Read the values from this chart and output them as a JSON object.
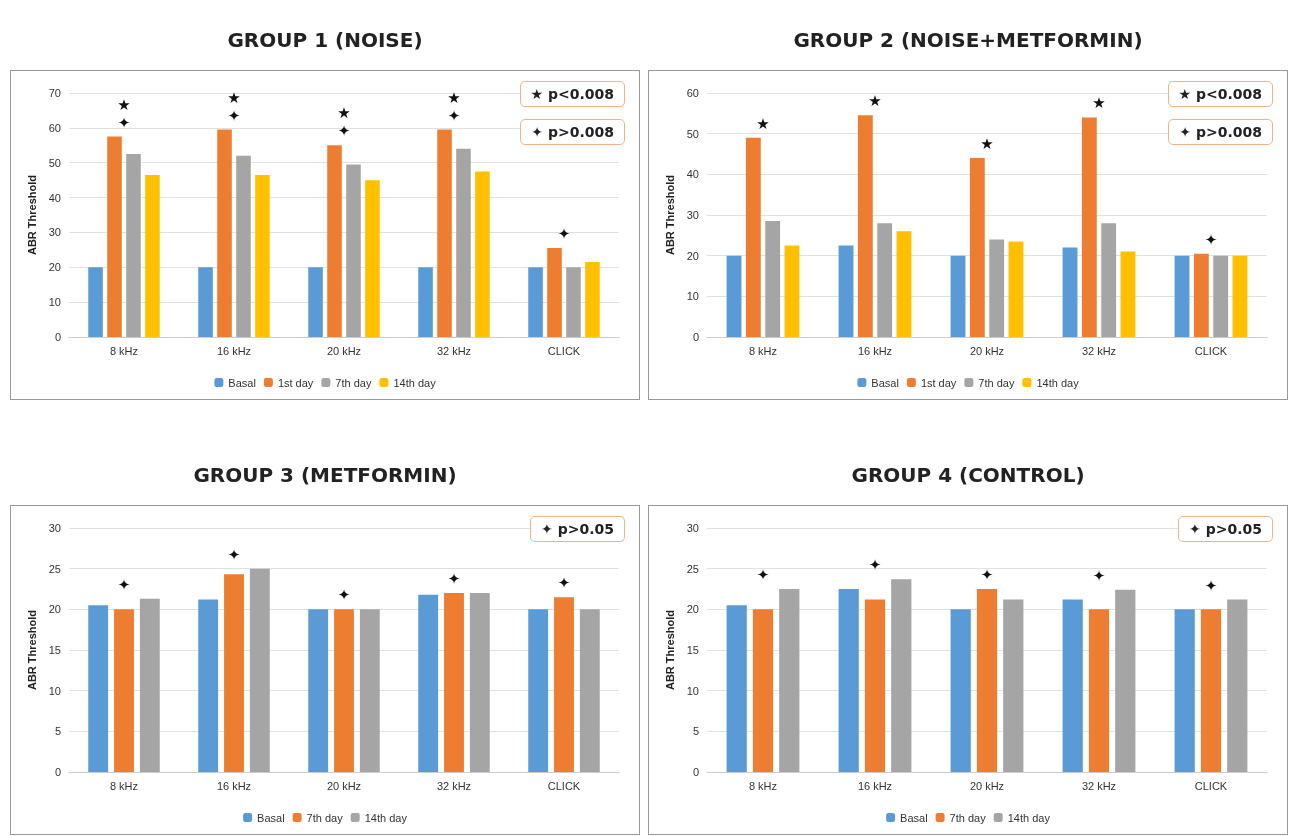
{
  "chart_data": [
    {
      "type": "bar",
      "title": "GROUP 1 (NOISE)",
      "ylabel": "ABR Threshold",
      "categories": [
        "8 kHz",
        "16 kHz",
        "20 kHz",
        "32 kHz",
        "CLICK"
      ],
      "series": [
        {
          "name": "Basal",
          "color": "#5b9bd5",
          "values": [
            20,
            20,
            20,
            20,
            20
          ]
        },
        {
          "name": "1st day",
          "color": "#ed7d31",
          "values": [
            57.5,
            59.5,
            55,
            59.5,
            25.5
          ]
        },
        {
          "name": "7th day",
          "color": "#a5a5a5",
          "values": [
            52.5,
            52,
            49.5,
            54,
            20
          ]
        },
        {
          "name": "14th day",
          "color": "#ffc000",
          "values": [
            46.5,
            46.5,
            45,
            47.5,
            21.5
          ]
        }
      ],
      "ylim": [
        0,
        70
      ],
      "yticks": [
        0,
        10,
        20,
        30,
        40,
        50,
        60,
        70
      ],
      "grid": "y",
      "legend": "bottom",
      "annotations": [
        "★ p<0.008",
        "✦ p>0.008",
        "★",
        "★",
        "★",
        "★",
        "✦",
        "✦",
        "✦",
        "✦",
        "✦"
      ]
    },
    {
      "type": "bar",
      "title": "GROUP 2 (NOISE+METFORMIN)",
      "ylabel": "ABR Threshold",
      "categories": [
        "8 kHz",
        "16 kHz",
        "20 kHz",
        "32 kHz",
        "CLICK"
      ],
      "series": [
        {
          "name": "Basal",
          "color": "#5b9bd5",
          "values": [
            20,
            22.5,
            20,
            22,
            20
          ]
        },
        {
          "name": "1st day",
          "color": "#ed7d31",
          "values": [
            49,
            54.5,
            44,
            54,
            20.5
          ]
        },
        {
          "name": "7th day",
          "color": "#a5a5a5",
          "values": [
            28.5,
            28,
            24,
            28,
            20
          ]
        },
        {
          "name": "14th day",
          "color": "#ffc000",
          "values": [
            22.5,
            26,
            23.5,
            21,
            20
          ]
        }
      ],
      "ylim": [
        0,
        60
      ],
      "yticks": [
        0,
        10,
        20,
        30,
        40,
        50,
        60
      ],
      "grid": "y",
      "legend": "bottom",
      "annotations": [
        "★ p<0.008",
        "✦ p>0.008",
        "★",
        "★",
        "★",
        "★",
        "✦"
      ]
    },
    {
      "type": "bar",
      "title": "GROUP 3 (METFORMIN)",
      "ylabel": "ABR Threshold",
      "categories": [
        "8 kHz",
        "16 kHz",
        "20 kHz",
        "32 kHz",
        "CLICK"
      ],
      "series": [
        {
          "name": "Basal",
          "color": "#5b9bd5",
          "values": [
            20.5,
            21.2,
            20,
            21.8,
            20
          ]
        },
        {
          "name": "7th day",
          "color": "#ed7d31",
          "values": [
            20,
            24.3,
            20,
            22,
            21.5
          ]
        },
        {
          "name": "14th day",
          "color": "#a5a5a5",
          "values": [
            21.3,
            25,
            20,
            22,
            20
          ]
        }
      ],
      "ylim": [
        0,
        30
      ],
      "yticks": [
        0,
        5,
        10,
        15,
        20,
        25,
        30
      ],
      "grid": "y",
      "legend": "bottom",
      "annotations": [
        "✦ p>0.05",
        "✦",
        "✦",
        "✦",
        "✦",
        "✦"
      ]
    },
    {
      "type": "bar",
      "title": "GROUP 4 (CONTROL)",
      "ylabel": "ABR Threshold",
      "categories": [
        "8 kHz",
        "16 kHz",
        "20 kHz",
        "32 kHz",
        "CLICK"
      ],
      "series": [
        {
          "name": "Basal",
          "color": "#5b9bd5",
          "values": [
            20.5,
            22.5,
            20,
            21.2,
            20
          ]
        },
        {
          "name": "7th day",
          "color": "#ed7d31",
          "values": [
            20,
            21.2,
            22.5,
            20,
            20
          ]
        },
        {
          "name": "14th day",
          "color": "#a5a5a5",
          "values": [
            22.5,
            23.7,
            21.2,
            22.4,
            21.2
          ]
        }
      ],
      "ylim": [
        0,
        30
      ],
      "yticks": [
        0,
        5,
        10,
        15,
        20,
        25,
        30
      ],
      "grid": "y",
      "legend": "bottom",
      "annotations": [
        "✦ p>0.05",
        "✦",
        "✦",
        "✦",
        "✦",
        "✦"
      ]
    }
  ]
}
